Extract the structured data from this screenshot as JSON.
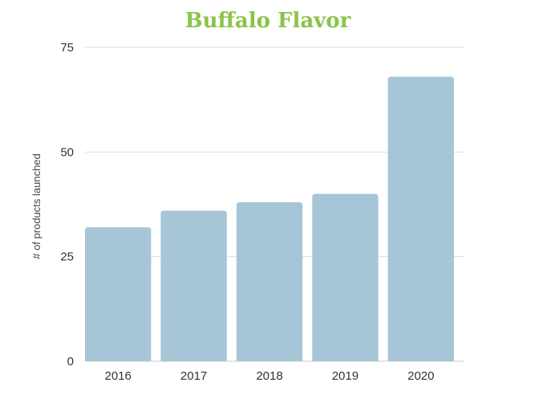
{
  "chart_data": {
    "type": "bar",
    "title": "Buffalo Flavor",
    "categories": [
      "2016",
      "2017",
      "2018",
      "2019",
      "2020"
    ],
    "values": [
      32,
      36,
      38,
      40,
      68
    ],
    "xlabel": "",
    "ylabel": "# of products launched",
    "ylim": [
      0,
      75
    ],
    "yticks": [
      0,
      25,
      50,
      75
    ],
    "grid": true,
    "legend": "none"
  },
  "colors": {
    "title": "#8bc34a",
    "bar": "#a6c6d8",
    "grid": "#dddddd",
    "axis": "#cccccc"
  }
}
